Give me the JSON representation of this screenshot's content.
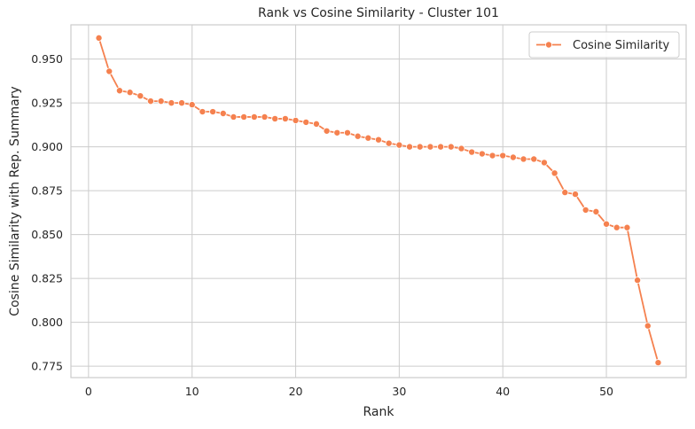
{
  "chart_data": {
    "type": "line",
    "title": "Rank vs Cosine Similarity - Cluster 101",
    "xlabel": "Rank",
    "ylabel": "Cosine Similarity with Rep. Summary",
    "xlim": [
      -1.7,
      57.7
    ],
    "ylim": [
      0.7685,
      0.9695
    ],
    "xticks": [
      0,
      10,
      20,
      30,
      40,
      50
    ],
    "yticks": [
      0.775,
      0.8,
      0.825,
      0.85,
      0.875,
      0.9,
      0.925,
      0.95
    ],
    "ytick_labels": [
      "0.775",
      "0.800",
      "0.825",
      "0.850",
      "0.875",
      "0.900",
      "0.925",
      "0.950"
    ],
    "grid": true,
    "legend_position": "top-right",
    "series": [
      {
        "name": "Cosine Similarity",
        "color": "#f5814f",
        "marker": "circle",
        "x": [
          1,
          2,
          3,
          4,
          5,
          6,
          7,
          8,
          9,
          10,
          11,
          12,
          13,
          14,
          15,
          16,
          17,
          18,
          19,
          20,
          21,
          22,
          23,
          24,
          25,
          26,
          27,
          28,
          29,
          30,
          31,
          32,
          33,
          34,
          35,
          36,
          37,
          38,
          39,
          40,
          41,
          42,
          43,
          44,
          45,
          46,
          47,
          48,
          49,
          50,
          51,
          52,
          53,
          54,
          55
        ],
        "y": [
          0.962,
          0.943,
          0.932,
          0.931,
          0.929,
          0.926,
          0.926,
          0.925,
          0.925,
          0.924,
          0.92,
          0.92,
          0.919,
          0.917,
          0.917,
          0.917,
          0.917,
          0.916,
          0.916,
          0.915,
          0.914,
          0.913,
          0.909,
          0.908,
          0.908,
          0.906,
          0.905,
          0.904,
          0.902,
          0.901,
          0.9,
          0.9,
          0.9,
          0.9,
          0.9,
          0.899,
          0.897,
          0.896,
          0.895,
          0.895,
          0.894,
          0.893,
          0.893,
          0.891,
          0.885,
          0.874,
          0.873,
          0.864,
          0.863,
          0.856,
          0.854,
          0.854,
          0.824,
          0.798,
          0.777
        ]
      }
    ]
  }
}
